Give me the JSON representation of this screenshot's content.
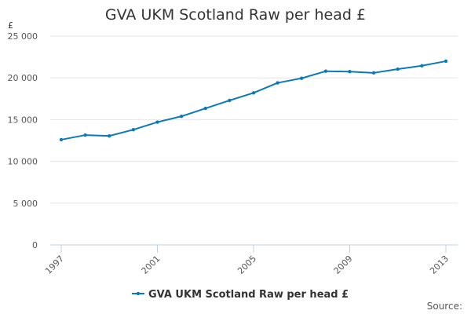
{
  "chart_data": {
    "type": "line",
    "title": "GVA UKM Scotland Raw per head £",
    "unit_label": "£",
    "xlabel": "",
    "ylabel": "",
    "x": [
      1997,
      1998,
      1999,
      2000,
      2001,
      2002,
      2003,
      2004,
      2005,
      2006,
      2007,
      2008,
      2009,
      2010,
      2011,
      2012,
      2013
    ],
    "x_tick_labels": [
      "1997",
      "2001",
      "2005",
      "2009",
      "2013"
    ],
    "x_tick_values": [
      1997,
      2001,
      2005,
      2009,
      2013
    ],
    "y_tick_labels": [
      "0",
      "5 000",
      "10 000",
      "15 000",
      "20 000",
      "25 000"
    ],
    "y_tick_values": [
      0,
      5000,
      10000,
      15000,
      20000,
      25000
    ],
    "ylim": [
      0,
      25000
    ],
    "xlim": [
      1997,
      2013
    ],
    "grid": true,
    "legend_position": "bottom",
    "series": [
      {
        "name": "GVA UKM Scotland Raw per head £",
        "color": "#0b7ab8",
        "values": [
          12600,
          13150,
          13050,
          13800,
          14700,
          15400,
          16350,
          17300,
          18200,
          19400,
          19950,
          20800,
          20750,
          20600,
          21050,
          21450,
          22000
        ]
      }
    ],
    "source_label": "Source:"
  }
}
